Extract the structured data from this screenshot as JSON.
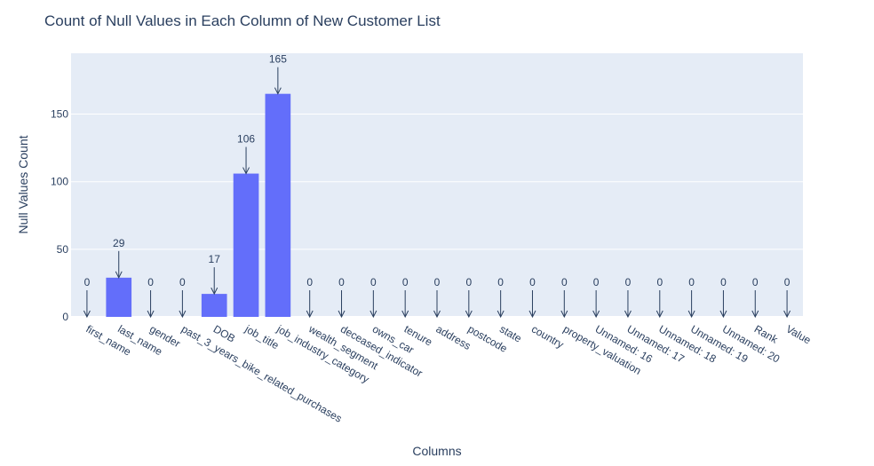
{
  "chart_data": {
    "type": "bar",
    "title": "Count of Null Values in Each Column of New Customer List",
    "xlabel": "Columns",
    "ylabel": "Null Values Count",
    "ylim": [
      0,
      195
    ],
    "yticks": [
      0,
      50,
      100,
      150
    ],
    "grid": true,
    "categories": [
      "first_name",
      "last_name",
      "gender",
      "past_3_years_bike_related_purchases",
      "DOB",
      "job_title",
      "job_industry_category",
      "wealth_segment",
      "deceased_indicator",
      "owns_car",
      "tenure",
      "address",
      "postcode",
      "state",
      "country",
      "property_valuation",
      "Unnamed: 16",
      "Unnamed: 17",
      "Unnamed: 18",
      "Unnamed: 19",
      "Unnamed: 20",
      "Rank",
      "Value"
    ],
    "values": [
      0,
      29,
      0,
      0,
      17,
      106,
      165,
      0,
      0,
      0,
      0,
      0,
      0,
      0,
      0,
      0,
      0,
      0,
      0,
      0,
      0,
      0,
      0
    ],
    "colors": {
      "bar": "#636efa",
      "plot_bg": "#e5ecf6",
      "grid": "#ffffff",
      "text": "#2a3f5f",
      "arrow": "#2a3f5f"
    }
  }
}
